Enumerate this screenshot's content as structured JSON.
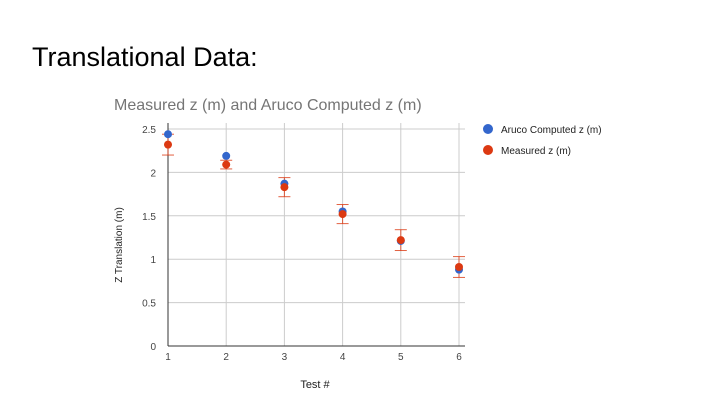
{
  "slide": {
    "title": "Translational Data:"
  },
  "chart_data": {
    "type": "scatter",
    "title": "Measured z (m) and Aruco Computed z (m)",
    "xlabel": "Test #",
    "ylabel": "Z Translation (m)",
    "x": [
      1,
      2,
      3,
      4,
      5,
      6
    ],
    "xticks": [
      "1",
      "2",
      "3",
      "4",
      "5",
      "6"
    ],
    "xlim": [
      1,
      6
    ],
    "ylim": [
      0,
      2.5
    ],
    "yticks": [
      "0",
      "0.5",
      "1",
      "1.5",
      "2",
      "2.5"
    ],
    "grid": true,
    "legend_position": "top-right",
    "series": [
      {
        "name": "Aruco Computed z (m)",
        "color": "#3366cc",
        "values": [
          2.44,
          2.19,
          1.87,
          1.55,
          1.21,
          0.88
        ]
      },
      {
        "name": "Measured z (m)",
        "color": "#dc3912",
        "values": [
          2.32,
          2.09,
          1.83,
          1.52,
          1.22,
          0.91
        ],
        "error": [
          0.12,
          0.05,
          0.11,
          0.11,
          0.12,
          0.12
        ]
      }
    ]
  }
}
